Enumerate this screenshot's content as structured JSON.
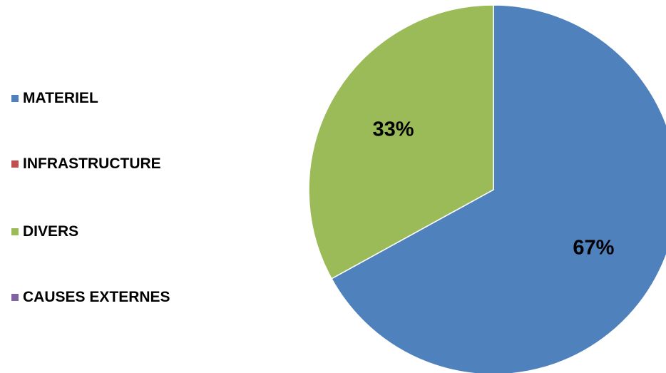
{
  "chart_data": {
    "type": "pie",
    "slices": [
      {
        "name": "MATERIEL",
        "value": 67,
        "label": "67%",
        "color": "#4F81BD"
      },
      {
        "name": "INFRASTRUCTURE",
        "value": 0,
        "label": "",
        "color": "#C0504D"
      },
      {
        "name": "DIVERS",
        "value": 33,
        "label": "33%",
        "color": "#9BBB59"
      },
      {
        "name": "CAUSES EXTERNES",
        "value": 0,
        "label": "",
        "color": "#8064A2"
      }
    ],
    "legend_position": "left"
  }
}
